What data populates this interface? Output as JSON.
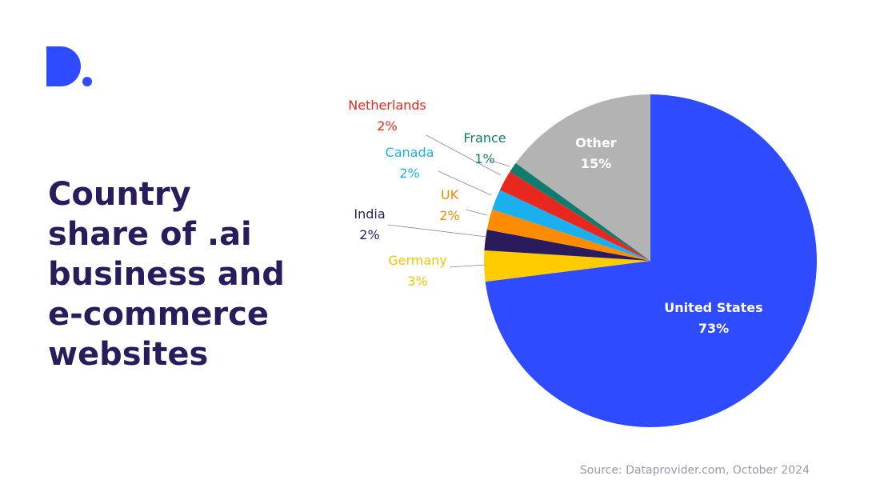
{
  "title_lines": [
    "Country",
    "share of .ai",
    "business and",
    "e-commerce",
    "websites"
  ],
  "source": "Source: Dataprovider.com, October 2024",
  "colors": {
    "title": "#2a1b5c",
    "brand": "#2e4bff"
  },
  "chart_data": {
    "type": "pie",
    "title": "Country share of .ai business and e-commerce websites",
    "start": "12 o'clock, clockwise",
    "slices": [
      {
        "name": "United States",
        "value": 73,
        "label": "73%",
        "color": "#2e4bff"
      },
      {
        "name": "Germany",
        "value": 3,
        "label": "3%",
        "color": "#ffcc00"
      },
      {
        "name": "India",
        "value": 2,
        "label": "2%",
        "color": "#2a1b5c"
      },
      {
        "name": "UK",
        "value": 2,
        "label": "2%",
        "color": "#ff8c00"
      },
      {
        "name": "Canada",
        "value": 2,
        "label": "2%",
        "color": "#1ab0f0"
      },
      {
        "name": "Netherlands",
        "value": 2,
        "label": "2%",
        "color": "#e8281e"
      },
      {
        "name": "France",
        "value": 1,
        "label": "1%",
        "color": "#0f7c6e"
      },
      {
        "name": "Other",
        "value": 15,
        "label": "15%",
        "color": "#b3b3b3"
      }
    ]
  }
}
